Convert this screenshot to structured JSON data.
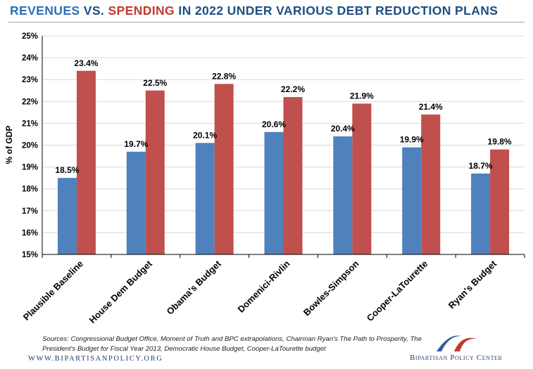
{
  "title": {
    "part1": "REVENUES",
    "part2": "VS.",
    "part3": "SPENDING",
    "part4": "IN 2022 UNDER VARIOUS DEBT REDUCTION PLANS"
  },
  "colors": {
    "revenues": "#4f81bd",
    "spending": "#c0504d",
    "title_blue": "#2e6fb5",
    "title_red": "#c0392b",
    "navy": "#1d4f82"
  },
  "chart_data": {
    "type": "bar",
    "title": "REVENUES VS. SPENDING IN 2022 UNDER VARIOUS DEBT REDUCTION PLANS",
    "xlabel": "",
    "ylabel": "% of GDP",
    "ylim": [
      15,
      25
    ],
    "yticks": [
      "15%",
      "16%",
      "17%",
      "18%",
      "19%",
      "20%",
      "21%",
      "22%",
      "23%",
      "24%",
      "25%"
    ],
    "ytick_values": [
      15,
      16,
      17,
      18,
      19,
      20,
      21,
      22,
      23,
      24,
      25
    ],
    "categories": [
      "Plausible Baseline",
      "House Dem Budget",
      "Obama's Budget",
      "Domenici-Rivlin",
      "Bowles-Simpson",
      "Cooper-LaTourette",
      "Ryan's Budget"
    ],
    "series": [
      {
        "name": "Revenues",
        "values": [
          18.5,
          19.7,
          20.1,
          20.6,
          20.4,
          19.9,
          18.7
        ],
        "labels": [
          "18.5%",
          "19.7%",
          "20.1%",
          "20.6%",
          "20.4%",
          "19.9%",
          "18.7%"
        ]
      },
      {
        "name": "Spending",
        "values": [
          23.4,
          22.5,
          22.8,
          22.2,
          21.9,
          21.4,
          19.8
        ],
        "labels": [
          "23.4%",
          "22.5%",
          "22.8%",
          "22.2%",
          "21.9%",
          "21.4%",
          "19.8%"
        ]
      }
    ],
    "grid": true
  },
  "footer": {
    "sources": "Sources: Congressional Budget Office, Moment of Truth and BPC extrapolations, Chairman Ryan's The Path to Prosperity, The President's Budget for Fiscal Year 2013, Democratic House Budget, Cooper-LaTourette budget",
    "website": "WWW.BIPARTISANPOLICY.ORG",
    "org": "Bipartisan Policy Center"
  }
}
